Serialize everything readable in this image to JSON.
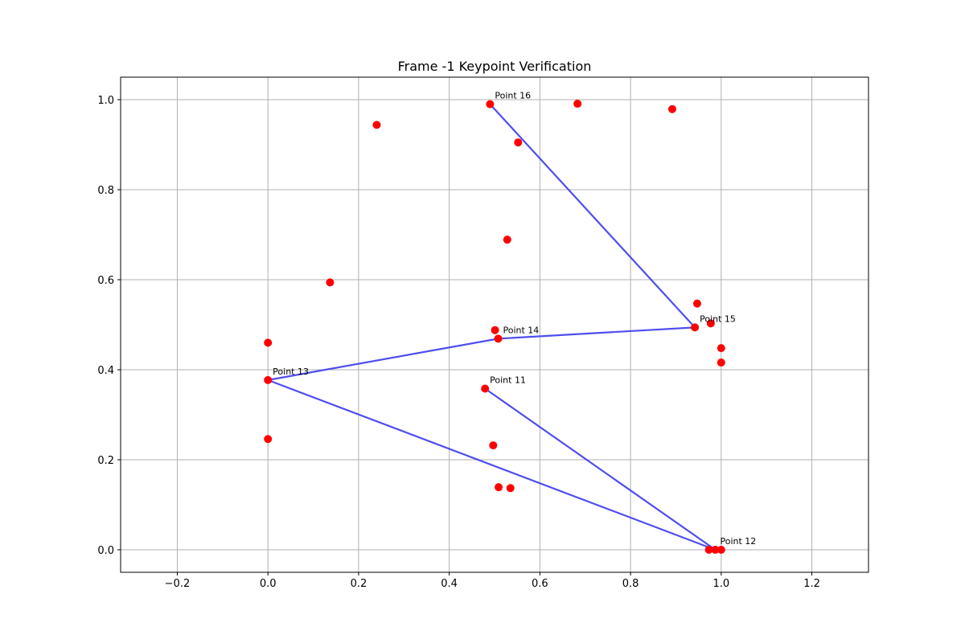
{
  "chart_data": {
    "type": "scatter",
    "title": "Frame -1 Keypoint Verification",
    "xlabel": "",
    "ylabel": "",
    "xlim": [
      -0.325,
      1.325
    ],
    "ylim": [
      -0.05,
      1.05
    ],
    "xticks": [
      -0.2,
      0.0,
      0.2,
      0.4,
      0.6,
      0.8,
      1.0,
      1.2
    ],
    "xtick_labels": [
      "−0.2",
      "0.0",
      "0.2",
      "0.4",
      "0.6",
      "0.8",
      "1.0",
      "1.2"
    ],
    "yticks": [
      0.0,
      0.2,
      0.4,
      0.6,
      0.8,
      1.0
    ],
    "ytick_labels": [
      "0.0",
      "0.2",
      "0.4",
      "0.6",
      "0.8",
      "1.0"
    ],
    "grid": true,
    "point_color": "#ff0000",
    "line_color": "#4444ee",
    "points": [
      {
        "x": 0.49,
        "y": 0.99
      },
      {
        "x": 0.683,
        "y": 0.991
      },
      {
        "x": 0.892,
        "y": 0.979
      },
      {
        "x": 0.24,
        "y": 0.944
      },
      {
        "x": 0.552,
        "y": 0.905
      },
      {
        "x": 0.528,
        "y": 0.689
      },
      {
        "x": 0.137,
        "y": 0.594
      },
      {
        "x": 0.947,
        "y": 0.547
      },
      {
        "x": 0.977,
        "y": 0.503
      },
      {
        "x": 0.942,
        "y": 0.494
      },
      {
        "x": 0.501,
        "y": 0.488
      },
      {
        "x": 0.508,
        "y": 0.469
      },
      {
        "x": 1.0,
        "y": 0.448
      },
      {
        "x": 1.0,
        "y": 0.416
      },
      {
        "x": 0.0,
        "y": 0.46
      },
      {
        "x": 0.0,
        "y": 0.377
      },
      {
        "x": 0.479,
        "y": 0.358
      },
      {
        "x": 0.0,
        "y": 0.246
      },
      {
        "x": 0.497,
        "y": 0.232
      },
      {
        "x": 0.509,
        "y": 0.139
      },
      {
        "x": 0.535,
        "y": 0.137
      },
      {
        "x": 0.973,
        "y": 0.0
      },
      {
        "x": 0.987,
        "y": 0.0
      },
      {
        "x": 1.0,
        "y": 0.0
      }
    ],
    "skeleton": [
      [
        {
          "x": 0.49,
          "y": 0.99
        },
        {
          "x": 0.942,
          "y": 0.494
        }
      ],
      [
        {
          "x": 0.942,
          "y": 0.494
        },
        {
          "x": 0.508,
          "y": 0.469
        }
      ],
      [
        {
          "x": 0.508,
          "y": 0.469
        },
        {
          "x": 0.0,
          "y": 0.377
        }
      ],
      [
        {
          "x": 0.0,
          "y": 0.377
        },
        {
          "x": 0.987,
          "y": 0.0
        }
      ],
      [
        {
          "x": 0.987,
          "y": 0.0
        },
        {
          "x": 0.479,
          "y": 0.358
        }
      ]
    ],
    "labels": [
      {
        "text": "Point 16",
        "x": 0.49,
        "y": 0.99
      },
      {
        "text": "Point 15",
        "x": 0.942,
        "y": 0.494
      },
      {
        "text": "Point 14",
        "x": 0.508,
        "y": 0.469
      },
      {
        "text": "Point 13",
        "x": 0.0,
        "y": 0.377
      },
      {
        "text": "Point 11",
        "x": 0.479,
        "y": 0.358
      },
      {
        "text": "Point 12",
        "x": 0.987,
        "y": 0.0
      }
    ]
  }
}
